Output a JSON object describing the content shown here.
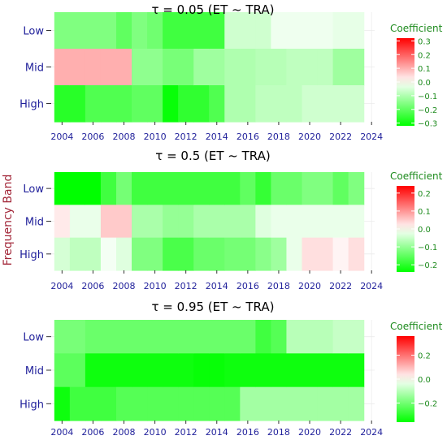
{
  "y_axis_title": "Frequency Band",
  "colors": {
    "low": "#00ff00",
    "mid": "#ffffff",
    "high": "#ff0000",
    "text_blue": "#1f1f9a",
    "legend_green": "#1e8b1e",
    "ytitle_red": "#a3283a"
  },
  "chart_data": [
    {
      "type": "heatmap",
      "title": "τ = 0.05  (ET ~ TRA)",
      "legend_title": "Coefficient",
      "legend_ticks": [
        "0.3",
        "0.2",
        "0.1",
        "0.0",
        "−0.1",
        "−0.2",
        "−0.3"
      ],
      "legend_tick_values": [
        0.3,
        0.2,
        0.1,
        0.0,
        -0.1,
        -0.2,
        -0.3
      ],
      "color_range": [
        -0.32,
        0.32
      ],
      "x_ticks": [
        "2004",
        "2006",
        "2008",
        "2010",
        "2012",
        "2014",
        "2016",
        "2018",
        "2020",
        "2022",
        "2024"
      ],
      "x_tick_values": [
        2004,
        2006,
        2008,
        2010,
        2012,
        2014,
        2016,
        2018,
        2020,
        2022,
        2024
      ],
      "xlim": [
        2003.3,
        2024.2
      ],
      "years": [
        2004,
        2005,
        2006,
        2007,
        2008,
        2009,
        2010,
        2011,
        2012,
        2013,
        2014,
        2015,
        2016,
        2017,
        2018,
        2019,
        2020,
        2021,
        2022,
        2023
      ],
      "rows": [
        "Low",
        "Mid",
        "High"
      ],
      "values": [
        [
          -0.16,
          -0.16,
          -0.16,
          -0.16,
          -0.2,
          -0.16,
          -0.18,
          -0.24,
          -0.24,
          -0.24,
          -0.24,
          -0.06,
          -0.06,
          -0.06,
          -0.02,
          -0.02,
          -0.02,
          -0.02,
          -0.03,
          -0.03
        ],
        [
          0.1,
          0.1,
          0.1,
          0.1,
          0.1,
          -0.14,
          -0.14,
          -0.17,
          -0.17,
          -0.12,
          -0.12,
          -0.1,
          -0.1,
          -0.09,
          -0.09,
          -0.08,
          -0.08,
          -0.08,
          -0.12,
          -0.12
        ],
        [
          -0.27,
          -0.27,
          -0.22,
          -0.22,
          -0.22,
          -0.2,
          -0.2,
          -0.31,
          -0.26,
          -0.26,
          -0.22,
          -0.1,
          -0.1,
          -0.08,
          -0.08,
          -0.08,
          -0.06,
          -0.06,
          -0.06,
          -0.06
        ]
      ]
    },
    {
      "type": "heatmap",
      "title": "τ = 0.5  (ET ~ TRA)",
      "legend_title": "Coefficient",
      "legend_ticks": [
        "0.2",
        "0.1",
        "0.0",
        "−0.1",
        "−0.2"
      ],
      "legend_tick_values": [
        0.2,
        0.1,
        0.0,
        -0.1,
        -0.2
      ],
      "color_range": [
        -0.24,
        0.24
      ],
      "x_ticks": [
        "2004",
        "2006",
        "2008",
        "2010",
        "2012",
        "2014",
        "2016",
        "2018",
        "2020",
        "2022",
        "2024"
      ],
      "x_tick_values": [
        2004,
        2006,
        2008,
        2010,
        2012,
        2014,
        2016,
        2018,
        2020,
        2022,
        2024
      ],
      "xlim": [
        2003.3,
        2024.2
      ],
      "years": [
        2004,
        2005,
        2006,
        2007,
        2008,
        2009,
        2010,
        2011,
        2012,
        2013,
        2014,
        2015,
        2016,
        2017,
        2018,
        2019,
        2020,
        2021,
        2022,
        2023
      ],
      "rows": [
        "Low",
        "Mid",
        "High"
      ],
      "values": [
        [
          -0.24,
          -0.24,
          -0.24,
          -0.18,
          -0.13,
          -0.18,
          -0.18,
          -0.18,
          -0.18,
          -0.18,
          -0.18,
          -0.18,
          -0.15,
          -0.19,
          -0.14,
          -0.14,
          -0.12,
          -0.12,
          -0.15,
          -0.12
        ],
        [
          0.02,
          -0.02,
          -0.02,
          0.05,
          0.05,
          -0.08,
          -0.08,
          -0.1,
          -0.1,
          -0.08,
          -0.08,
          -0.08,
          -0.08,
          -0.03,
          -0.02,
          -0.02,
          -0.02,
          -0.02,
          -0.02,
          -0.02
        ],
        [
          -0.04,
          -0.06,
          -0.06,
          -0.01,
          -0.03,
          -0.12,
          -0.12,
          -0.17,
          -0.17,
          -0.14,
          -0.14,
          -0.13,
          -0.13,
          -0.11,
          -0.09,
          -0.02,
          0.03,
          0.03,
          0.01,
          0.03
        ]
      ]
    },
    {
      "type": "heatmap",
      "title": "τ = 0.95  (ET ~ TRA)",
      "legend_title": "Coefficient",
      "legend_ticks": [
        "0.2",
        "0.0",
        "−0.2"
      ],
      "legend_tick_values": [
        0.2,
        0.0,
        -0.2
      ],
      "color_range": [
        -0.36,
        0.36
      ],
      "x_ticks": [
        "2004",
        "2006",
        "2008",
        "2010",
        "2012",
        "2014",
        "2016",
        "2018",
        "2020",
        "2022",
        "2024"
      ],
      "x_tick_values": [
        2004,
        2006,
        2008,
        2010,
        2012,
        2014,
        2016,
        2018,
        2020,
        2022,
        2024
      ],
      "xlim": [
        2003.3,
        2024.2
      ],
      "years": [
        2004,
        2005,
        2006,
        2007,
        2008,
        2009,
        2010,
        2011,
        2012,
        2013,
        2014,
        2015,
        2016,
        2017,
        2018,
        2019,
        2020,
        2021,
        2022,
        2023
      ],
      "rows": [
        "Low",
        "Mid",
        "High"
      ],
      "values": [
        [
          -0.19,
          -0.19,
          -0.21,
          -0.21,
          -0.21,
          -0.21,
          -0.21,
          -0.21,
          -0.21,
          -0.21,
          -0.21,
          -0.21,
          -0.21,
          -0.27,
          -0.24,
          -0.1,
          -0.1,
          -0.1,
          -0.08,
          -0.08
        ],
        [
          -0.23,
          -0.23,
          -0.34,
          -0.34,
          -0.34,
          -0.34,
          -0.34,
          -0.34,
          -0.34,
          -0.35,
          -0.35,
          -0.34,
          -0.34,
          -0.34,
          -0.34,
          -0.34,
          -0.34,
          -0.34,
          -0.34,
          -0.34
        ],
        [
          -0.34,
          -0.27,
          -0.27,
          -0.27,
          -0.24,
          -0.24,
          -0.24,
          -0.24,
          -0.24,
          -0.24,
          -0.24,
          -0.24,
          -0.13,
          -0.13,
          -0.13,
          -0.13,
          -0.13,
          -0.13,
          -0.13,
          -0.13
        ]
      ]
    }
  ]
}
